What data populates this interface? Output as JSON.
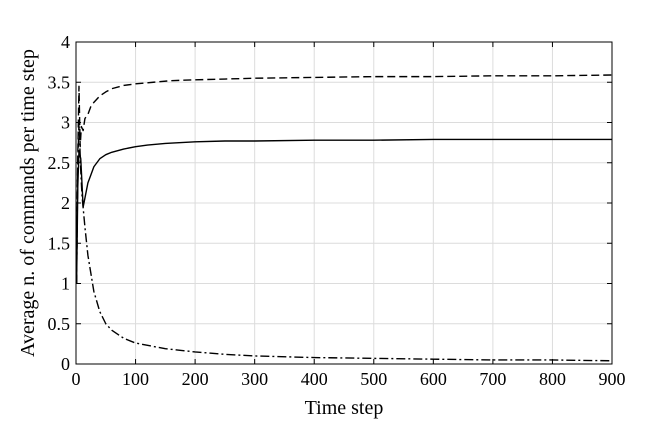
{
  "chart_data": {
    "type": "line",
    "title": "",
    "xlabel": "Time step",
    "ylabel": "Average n. of commands per time step",
    "xlim": [
      0,
      900
    ],
    "ylim": [
      0,
      4
    ],
    "xticks": [
      0,
      100,
      200,
      300,
      400,
      500,
      600,
      700,
      800,
      900
    ],
    "yticks": [
      0,
      0.5,
      1,
      1.5,
      2,
      2.5,
      3,
      3.5,
      4
    ],
    "ytick_labels": [
      "0",
      "0.5",
      "1",
      "1.5",
      "2",
      "2.5",
      "3",
      "3.5",
      "4"
    ],
    "grid": true,
    "legend": "none",
    "series": [
      {
        "style": "dashed",
        "color": "#000000",
        "x": [
          1,
          3,
          5,
          7,
          9,
          12,
          15,
          20,
          25,
          30,
          40,
          50,
          60,
          80,
          100,
          130,
          160,
          200,
          250,
          300,
          400,
          500,
          600,
          700,
          800,
          900
        ],
        "y": [
          1.0,
          2.6,
          3.45,
          2.7,
          2.95,
          2.9,
          3.05,
          3.1,
          3.2,
          3.25,
          3.33,
          3.38,
          3.42,
          3.46,
          3.48,
          3.5,
          3.52,
          3.53,
          3.54,
          3.55,
          3.56,
          3.57,
          3.57,
          3.58,
          3.58,
          3.59
        ]
      },
      {
        "style": "solid",
        "color": "#000000",
        "x": [
          1,
          3,
          5,
          8,
          12,
          16,
          20,
          25,
          30,
          40,
          50,
          60,
          70,
          80,
          100,
          120,
          150,
          200,
          250,
          300,
          400,
          500,
          600,
          700,
          800,
          900
        ],
        "y": [
          1.0,
          2.2,
          2.65,
          2.55,
          1.95,
          2.1,
          2.25,
          2.35,
          2.45,
          2.55,
          2.6,
          2.63,
          2.65,
          2.67,
          2.7,
          2.72,
          2.74,
          2.76,
          2.77,
          2.77,
          2.78,
          2.78,
          2.79,
          2.79,
          2.79,
          2.79
        ]
      },
      {
        "style": "dashdot",
        "color": "#000000",
        "x": [
          1,
          3,
          5,
          8,
          10,
          15,
          20,
          30,
          40,
          50,
          60,
          80,
          100,
          150,
          200,
          250,
          300,
          400,
          500,
          600,
          700,
          800,
          900
        ],
        "y": [
          1.0,
          2.5,
          3.0,
          2.4,
          2.1,
          1.7,
          1.35,
          0.9,
          0.65,
          0.5,
          0.42,
          0.32,
          0.26,
          0.19,
          0.15,
          0.12,
          0.1,
          0.08,
          0.07,
          0.06,
          0.05,
          0.05,
          0.04
        ]
      }
    ]
  }
}
